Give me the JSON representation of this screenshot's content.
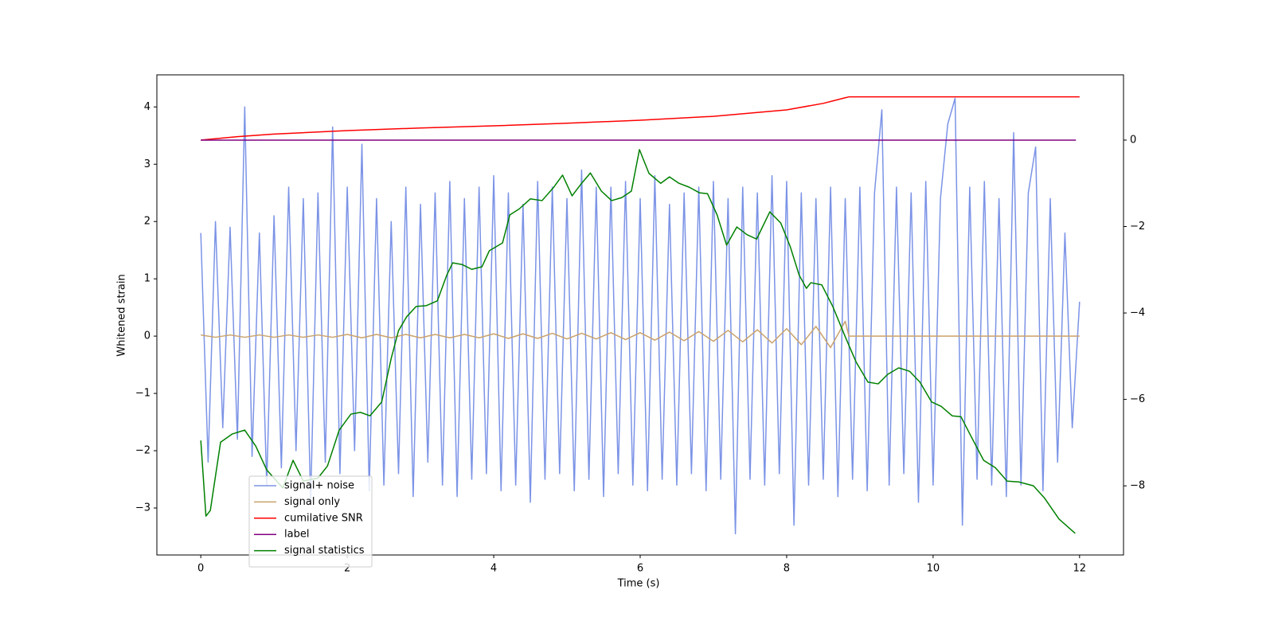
{
  "chart_data": {
    "type": "line",
    "xlabel": "Time (s)",
    "ylabel": "Whitened strain",
    "xlim": [
      -0.6,
      12.6
    ],
    "ylim": [
      -3.82,
      4.56
    ],
    "y2lim": [
      -9.6,
      1.51
    ],
    "xticks": [
      0,
      2,
      4,
      6,
      8,
      10,
      12
    ],
    "yticks": [
      {
        "value": -3,
        "label": "−3"
      },
      {
        "value": -2,
        "label": "−2"
      },
      {
        "value": -1,
        "label": "−1"
      },
      0,
      1,
      2,
      3,
      4
    ],
    "y2ticks": [
      {
        "value": -8,
        "label": "−8"
      },
      {
        "value": -6,
        "label": "−6"
      },
      {
        "value": -4,
        "label": "−4"
      },
      {
        "value": -2,
        "label": "−2"
      },
      0
    ],
    "grid": false,
    "legend": "lower left",
    "series": [
      {
        "name": "signal+ noise",
        "color": "#7b93e6",
        "x": [
          0,
          0.1,
          0.2,
          0.3,
          0.4,
          0.5,
          0.6,
          0.7,
          0.8,
          0.9,
          1,
          1.1,
          1.2,
          1.3,
          1.4,
          1.5,
          1.6,
          1.7,
          1.8,
          1.9,
          2,
          2.1,
          2.2,
          2.3,
          2.4,
          2.5,
          2.6,
          2.7,
          2.8,
          2.9,
          3,
          3.1,
          3.2,
          3.3,
          3.4,
          3.5,
          3.6,
          3.7,
          3.8,
          3.9,
          4,
          4.1,
          4.2,
          4.3,
          4.4,
          4.5,
          4.6,
          4.7,
          4.8,
          4.9,
          5,
          5.1,
          5.2,
          5.3,
          5.4,
          5.5,
          5.6,
          5.7,
          5.8,
          5.9,
          6,
          6.1,
          6.2,
          6.3,
          6.4,
          6.5,
          6.6,
          6.7,
          6.8,
          6.9,
          7,
          7.1,
          7.2,
          7.3,
          7.4,
          7.5,
          7.6,
          7.7,
          7.8,
          7.9,
          8,
          8.1,
          8.2,
          8.3,
          8.4,
          8.5,
          8.6,
          8.7,
          8.8,
          8.9,
          9,
          9.1,
          9.2,
          9.3,
          9.4,
          9.5,
          9.6,
          9.7,
          9.8,
          9.9,
          10,
          10.1,
          10.2,
          10.3,
          10.4,
          10.5,
          10.6,
          10.7,
          10.8,
          10.9,
          11,
          11.1,
          11.2,
          11.3,
          11.4,
          11.5,
          11.6,
          11.7,
          11.8,
          11.9,
          12
        ],
        "values": [
          1.8,
          -2.2,
          2.0,
          -1.6,
          1.9,
          -1.8,
          4.0,
          -2.1,
          1.8,
          -2.6,
          2.1,
          -2.3,
          2.6,
          -2.0,
          2.4,
          -2.9,
          2.5,
          -2.2,
          3.65,
          -2.4,
          2.6,
          -2.0,
          3.35,
          -2.7,
          2.4,
          -2.6,
          2.0,
          -2.4,
          2.6,
          -2.8,
          2.3,
          -2.2,
          2.5,
          -2.6,
          2.7,
          -2.8,
          2.4,
          -2.5,
          2.6,
          -2.4,
          2.8,
          -2.7,
          2.5,
          -2.6,
          2.3,
          -2.9,
          2.7,
          -2.5,
          2.6,
          -2.4,
          2.4,
          -2.7,
          2.9,
          -2.5,
          2.6,
          -2.8,
          2.6,
          -2.4,
          2.7,
          -2.6,
          2.4,
          -2.7,
          2.8,
          -2.5,
          2.3,
          -2.6,
          2.5,
          -2.4,
          2.6,
          -2.7,
          2.7,
          -2.5,
          2.4,
          -3.45,
          2.6,
          -2.5,
          2.5,
          -2.6,
          2.8,
          -2.4,
          2.7,
          -3.3,
          2.5,
          -2.6,
          2.4,
          -2.5,
          2.6,
          -2.8,
          2.4,
          -2.5,
          2.6,
          -2.7,
          2.5,
          3.95,
          -2.6,
          2.6,
          -2.4,
          2.5,
          -2.9,
          2.7,
          -2.6,
          2.4,
          3.7,
          4.15,
          -3.3,
          2.6,
          -2.5,
          2.7,
          -2.6,
          2.4,
          -2.8,
          3.55,
          -2.6,
          2.5,
          3.3,
          -2.7,
          2.4,
          -2.2,
          1.8,
          -1.6,
          0.6
        ]
      },
      {
        "name": "signal only",
        "color": "#c9a26c",
        "x": [
          0,
          0.2,
          0.4,
          0.6,
          0.8,
          1,
          1.2,
          1.4,
          1.6,
          1.8,
          2,
          2.2,
          2.4,
          2.6,
          2.8,
          3,
          3.2,
          3.4,
          3.6,
          3.8,
          4,
          4.2,
          4.4,
          4.6,
          4.8,
          5,
          5.2,
          5.4,
          5.6,
          5.8,
          6,
          6.2,
          6.4,
          6.6,
          6.8,
          7,
          7.2,
          7.4,
          7.6,
          7.8,
          8,
          8.2,
          8.4,
          8.6,
          8.8,
          8.85,
          12
        ],
        "values": [
          0.02,
          -0.02,
          0.02,
          -0.02,
          0.02,
          -0.02,
          0.02,
          -0.02,
          0.02,
          -0.02,
          0.03,
          -0.03,
          0.03,
          -0.03,
          0.03,
          -0.03,
          0.03,
          -0.03,
          0.03,
          -0.03,
          0.04,
          -0.04,
          0.04,
          -0.04,
          0.05,
          -0.05,
          0.05,
          -0.05,
          0.06,
          -0.06,
          0.06,
          -0.07,
          0.07,
          -0.08,
          0.08,
          -0.09,
          0.1,
          -0.1,
          0.11,
          -0.12,
          0.13,
          -0.15,
          0.17,
          -0.2,
          0.26,
          0,
          0
        ]
      },
      {
        "name": "cumilative SNR",
        "color": "#ff0000",
        "axis": "y2",
        "x": [
          0,
          0.5,
          1,
          2,
          3,
          4,
          5,
          6,
          7,
          8,
          8.5,
          8.8,
          8.85,
          12
        ],
        "values": [
          0,
          0.08,
          0.14,
          0.22,
          0.28,
          0.33,
          0.39,
          0.46,
          0.55,
          0.7,
          0.85,
          0.98,
          1.0,
          1.0
        ]
      },
      {
        "name": "label",
        "color": "#800080",
        "axis": "y2",
        "x": [
          0,
          11.95
        ],
        "values": [
          0,
          0
        ]
      },
      {
        "name": "signal statistics",
        "color": "#008000",
        "axis": "y2",
        "x": [
          0,
          0.07,
          0.13,
          0.27,
          0.43,
          0.6,
          0.75,
          0.9,
          1.12,
          1.26,
          1.4,
          1.6,
          1.73,
          1.89,
          2.05,
          2.18,
          2.31,
          2.47,
          2.6,
          2.7,
          2.81,
          2.94,
          3.08,
          3.23,
          3.36,
          3.44,
          3.57,
          3.7,
          3.84,
          3.94,
          4.12,
          4.22,
          4.35,
          4.5,
          4.66,
          4.82,
          4.94,
          5.07,
          5.2,
          5.32,
          5.47,
          5.61,
          5.75,
          5.88,
          5.99,
          6.12,
          6.28,
          6.4,
          6.53,
          6.67,
          6.81,
          6.92,
          7.05,
          7.18,
          7.32,
          7.46,
          7.59,
          7.77,
          7.92,
          8.05,
          8.17,
          8.27,
          8.33,
          8.48,
          8.63,
          8.81,
          8.95,
          9.11,
          9.25,
          9.38,
          9.53,
          9.68,
          9.82,
          9.98,
          10.11,
          10.26,
          10.38,
          10.52,
          10.69,
          10.85,
          11.01,
          11.17,
          11.37,
          11.52,
          11.72,
          11.94
        ],
        "values": [
          -6.95,
          -8.7,
          -8.57,
          -6.99,
          -6.8,
          -6.71,
          -7.08,
          -7.63,
          -8.05,
          -7.41,
          -7.89,
          -7.82,
          -7.54,
          -6.71,
          -6.34,
          -6.3,
          -6.38,
          -6.06,
          -5.05,
          -4.41,
          -4.09,
          -3.85,
          -3.83,
          -3.72,
          -3.12,
          -2.84,
          -2.88,
          -2.99,
          -2.93,
          -2.56,
          -2.38,
          -1.73,
          -1.59,
          -1.36,
          -1.4,
          -1.09,
          -0.81,
          -1.29,
          -1,
          -0.76,
          -1.18,
          -1.4,
          -1.33,
          -1.18,
          -0.22,
          -0.77,
          -1,
          -0.85,
          -1,
          -1.09,
          -1.22,
          -1.24,
          -1.73,
          -2.43,
          -2.01,
          -2.19,
          -2.29,
          -1.66,
          -1.92,
          -2.47,
          -3.12,
          -3.43,
          -3.3,
          -3.35,
          -3.85,
          -4.59,
          -5.14,
          -5.6,
          -5.64,
          -5.42,
          -5.27,
          -5.35,
          -5.6,
          -6.06,
          -6.16,
          -6.38,
          -6.4,
          -6.86,
          -7.41,
          -7.58,
          -7.89,
          -7.91,
          -8,
          -8.28,
          -8.77,
          -9.1
        ]
      }
    ]
  }
}
